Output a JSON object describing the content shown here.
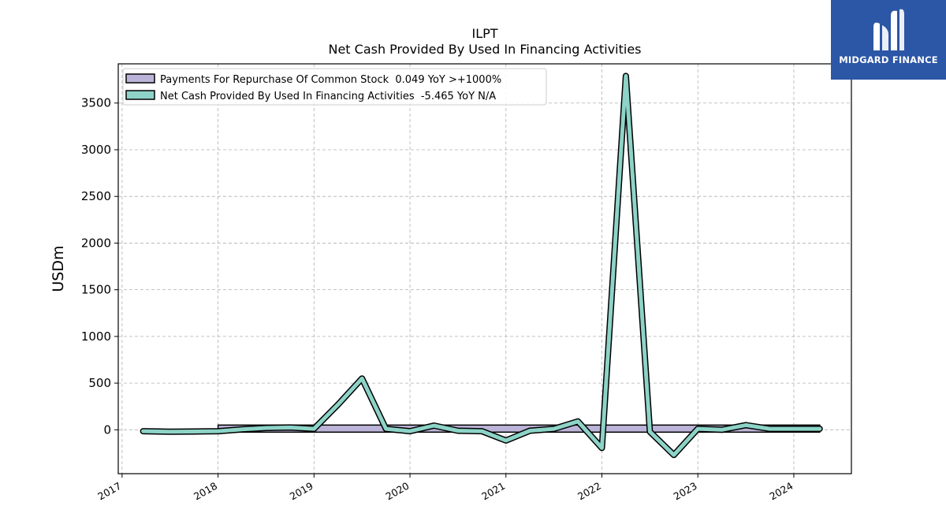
{
  "chart_data": {
    "type": "line",
    "title": "ILPT",
    "subtitle": "Net Cash Provided By Used In Financing Activities",
    "ylabel": "USDm",
    "xlabel": "",
    "ylim": [
      -470,
      3920
    ],
    "xlim": [
      2016.96,
      2024.6
    ],
    "yticks": [
      0,
      500,
      1000,
      1500,
      2000,
      2500,
      3000,
      3500
    ],
    "xticks": [
      2017,
      2018,
      2019,
      2020,
      2021,
      2022,
      2023,
      2024
    ],
    "grid": true,
    "legend_position": "top-left",
    "series": [
      {
        "name": "Payments For Repurchase Of Common Stock  0.049 YoY >+1000%",
        "kind": "area",
        "color": "#bcb4d8",
        "x": [
          2018.0,
          2024.27
        ],
        "y": [
          0,
          0
        ]
      },
      {
        "name": "Net Cash Provided By Used In Financing Activities  -5.465 YoY N/A",
        "kind": "line",
        "color": "#8dd3c7",
        "x": [
          2017.22,
          2017.5,
          2017.75,
          2018.0,
          2018.25,
          2018.5,
          2018.75,
          2019.0,
          2019.25,
          2019.5,
          2019.75,
          2020.0,
          2020.25,
          2020.5,
          2020.75,
          2021.0,
          2021.25,
          2021.5,
          2021.75,
          2022.0,
          2022.25,
          2022.5,
          2022.75,
          2023.0,
          2023.25,
          2023.5,
          2023.75,
          2024.0,
          2024.27
        ],
        "y": [
          -15,
          -20,
          -18,
          -15,
          5,
          20,
          25,
          10,
          270,
          550,
          10,
          -15,
          45,
          -10,
          -15,
          -115,
          -10,
          10,
          90,
          -195,
          3790,
          -20,
          -270,
          10,
          0,
          50,
          10,
          10,
          10
        ]
      }
    ]
  },
  "logo": {
    "text": "MIDGARD FINANCE",
    "icon": "midgard-logo-icon"
  },
  "colors": {
    "line_fill": "#8dd3c7",
    "area_fill": "#bcb4d8",
    "outline": "#000000",
    "grid": "#b0b0b0",
    "logo_bg": "#2c56a6"
  }
}
